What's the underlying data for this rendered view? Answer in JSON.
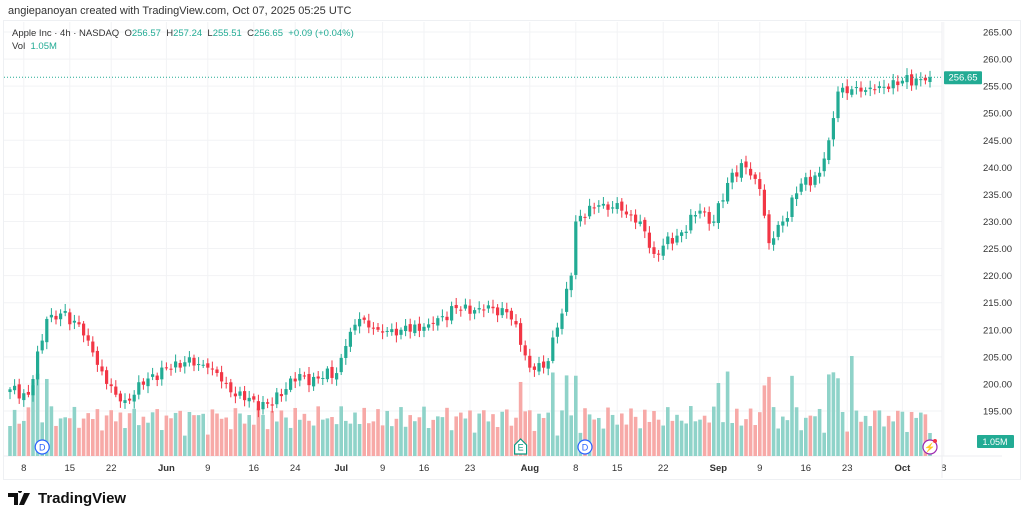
{
  "credit": "angiepanoyan created with TradingView.com, Oct 07, 2025 05:25 UTC",
  "legend": {
    "symbol": "Apple Inc · 4h · NASDAQ",
    "o_label": "O",
    "o": "256.57",
    "h_label": "H",
    "h": "257.24",
    "l_label": "L",
    "l": "255.51",
    "c_label": "C",
    "c": "256.65",
    "change": "+0.09 (+0.04%)",
    "vol_label": "Vol",
    "vol": "1.05M"
  },
  "colors": {
    "up": "#22ab94",
    "down": "#f23645",
    "up_vol": "#8fd3c9",
    "down_vol": "#f7a9a7",
    "price_line": "#22ab94"
  },
  "events": [
    {
      "label": "D",
      "type": "dividend",
      "bar": 7
    },
    {
      "label": "E",
      "type": "earnings",
      "bar": 111
    },
    {
      "label": "D",
      "type": "dividend",
      "bar": 125
    },
    {
      "label": "⚡",
      "type": "news",
      "bar": 200
    }
  ],
  "footer": {
    "brand": "TradingView"
  },
  "chart_data": {
    "type": "candlestick",
    "title": "Apple Inc · 4h · NASDAQ",
    "ylim": [
      192,
      267
    ],
    "y_ticks": [
      "265.00",
      "260.00",
      "255.00",
      "250.00",
      "245.00",
      "240.00",
      "235.00",
      "230.00",
      "225.00",
      "220.00",
      "215.00",
      "210.00",
      "205.00",
      "200.00",
      "195.00"
    ],
    "x_ticks": [
      {
        "label": "8",
        "bar": 3
      },
      {
        "label": "15",
        "bar": 13
      },
      {
        "label": "22",
        "bar": 22
      },
      {
        "label": "Jun",
        "bar": 34
      },
      {
        "label": "9",
        "bar": 43
      },
      {
        "label": "16",
        "bar": 53
      },
      {
        "label": "24",
        "bar": 62
      },
      {
        "label": "Jul",
        "bar": 72
      },
      {
        "label": "9",
        "bar": 81
      },
      {
        "label": "16",
        "bar": 90
      },
      {
        "label": "23",
        "bar": 100
      },
      {
        "label": "Aug",
        "bar": 113
      },
      {
        "label": "8",
        "bar": 123
      },
      {
        "label": "15",
        "bar": 132
      },
      {
        "label": "22",
        "bar": 142
      },
      {
        "label": "Sep",
        "bar": 154
      },
      {
        "label": "9",
        "bar": 163
      },
      {
        "label": "16",
        "bar": 173
      },
      {
        "label": "23",
        "bar": 182
      },
      {
        "label": "Oct",
        "bar": 194
      },
      {
        "label": "8",
        "bar": 203
      }
    ],
    "close_keypoints": [
      [
        0,
        199
      ],
      [
        4,
        198
      ],
      [
        7,
        208
      ],
      [
        8,
        212
      ],
      [
        11,
        213
      ],
      [
        15,
        211
      ],
      [
        17,
        208
      ],
      [
        21,
        200
      ],
      [
        23,
        198
      ],
      [
        25,
        197
      ],
      [
        27,
        198
      ],
      [
        30,
        201
      ],
      [
        34,
        203
      ],
      [
        38,
        204
      ],
      [
        43,
        203
      ],
      [
        47,
        200
      ],
      [
        51,
        197
      ],
      [
        57,
        196
      ],
      [
        61,
        201
      ],
      [
        67,
        201
      ],
      [
        71,
        202
      ],
      [
        73,
        207
      ],
      [
        76,
        212
      ],
      [
        80,
        210
      ],
      [
        85,
        210
      ],
      [
        91,
        211
      ],
      [
        97,
        214
      ],
      [
        102,
        214
      ],
      [
        107,
        214
      ],
      [
        110,
        211
      ],
      [
        113,
        203
      ],
      [
        116,
        203
      ],
      [
        120,
        213
      ],
      [
        122,
        220
      ],
      [
        123,
        230
      ],
      [
        128,
        233
      ],
      [
        133,
        232
      ],
      [
        137,
        230
      ],
      [
        140,
        224
      ],
      [
        146,
        228
      ],
      [
        150,
        232
      ],
      [
        153,
        230
      ],
      [
        157,
        239
      ],
      [
        160,
        240
      ],
      [
        163,
        236
      ],
      [
        165,
        226
      ],
      [
        168,
        230
      ],
      [
        172,
        237
      ],
      [
        176,
        239
      ],
      [
        178,
        245
      ],
      [
        180,
        254
      ],
      [
        185,
        254
      ],
      [
        189,
        255
      ],
      [
        194,
        256
      ],
      [
        200,
        256.65
      ]
    ],
    "last_price": "256.65",
    "last_volume": "1.05M"
  }
}
